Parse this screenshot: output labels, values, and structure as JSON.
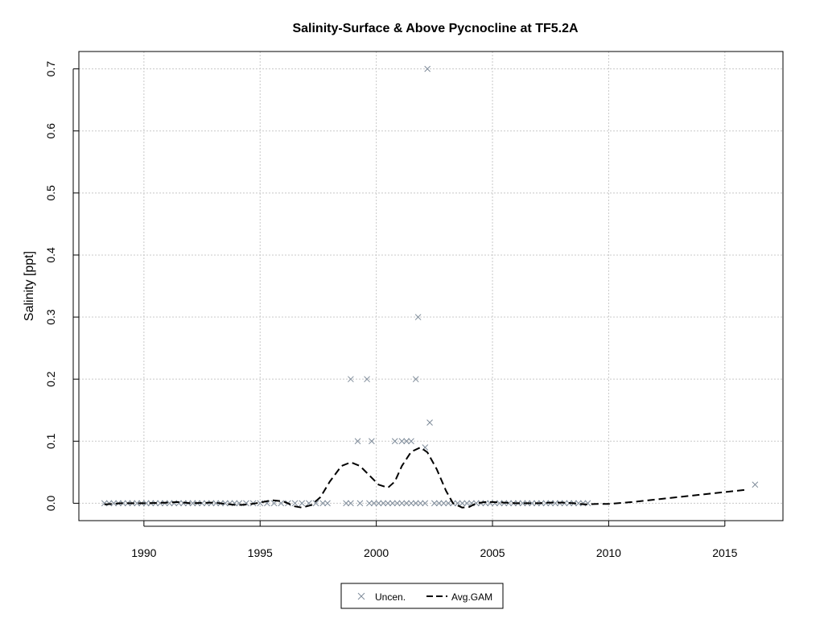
{
  "chart_data": {
    "type": "scatter",
    "title": "Salinity-Surface & Above Pycnocline at TF5.2A",
    "xlabel": "",
    "ylabel": "Salinity [ppt]",
    "xlim": [
      1987.2,
      2017.5
    ],
    "ylim": [
      -0.028,
      0.728
    ],
    "xticks": [
      "1990",
      "1995",
      "2000",
      "2005",
      "2010",
      "2015"
    ],
    "yticks": [
      "0.0",
      "0.1",
      "0.2",
      "0.3",
      "0.4",
      "0.5",
      "0.6",
      "0.7"
    ],
    "grid": true,
    "legend_position": "bottom-center",
    "series": [
      {
        "name": "Uncen.",
        "kind": "points",
        "color": "#7f8c9a",
        "x": [
          1988.3,
          1988.5,
          1988.7,
          1988.9,
          1989.1,
          1989.3,
          1989.5,
          1989.7,
          1989.9,
          1990.1,
          1990.3,
          1990.5,
          1990.7,
          1990.9,
          1991.1,
          1991.3,
          1991.5,
          1991.7,
          1991.9,
          1992.1,
          1992.3,
          1992.5,
          1992.7,
          1992.9,
          1993.1,
          1993.3,
          1993.5,
          1993.7,
          1993.9,
          1994.1,
          1994.4,
          1994.7,
          1995.0,
          1995.3,
          1995.6,
          1995.9,
          1996.2,
          1996.5,
          1996.8,
          1997.1,
          1997.4,
          1997.7,
          1997.9,
          1998.7,
          1998.9,
          1999.3,
          1999.7,
          1999.9,
          2000.1,
          2000.3,
          2000.5,
          2000.7,
          2000.9,
          2001.1,
          2001.3,
          2001.5,
          2001.7,
          2001.9,
          2002.1,
          2002.5,
          2002.7,
          2002.9,
          2003.1,
          2003.3,
          2003.5,
          2003.7,
          2003.9,
          2004.1,
          2004.3,
          2004.5,
          2004.7,
          2004.9,
          2005.1,
          2005.3,
          2005.5,
          2005.7,
          2005.9,
          2006.1,
          2006.3,
          2006.5,
          2006.7,
          2006.9,
          2007.1,
          2007.3,
          2007.5,
          2007.7,
          2007.9,
          2008.1,
          2008.3,
          2008.5,
          2008.7,
          2008.9,
          2009.1,
          1998.9,
          1999.6,
          2001.7,
          2001.8,
          2002.2,
          1999.2,
          1999.8,
          2000.8,
          2001.1,
          2001.3,
          2001.5,
          2002.1,
          2002.3,
          2016.3
        ],
        "y": [
          0,
          0,
          0,
          0,
          0,
          0,
          0,
          0,
          0,
          0,
          0,
          0,
          0,
          0,
          0,
          0,
          0,
          0,
          0,
          0,
          0,
          0,
          0,
          0,
          0,
          0,
          0,
          0,
          0,
          0,
          0,
          0,
          0,
          0,
          0,
          0,
          0,
          0,
          0,
          0,
          0,
          0,
          0,
          0,
          0,
          0,
          0,
          0,
          0,
          0,
          0,
          0,
          0,
          0,
          0,
          0,
          0,
          0,
          0,
          0,
          0,
          0,
          0,
          0,
          0,
          0,
          0,
          0,
          0,
          0,
          0,
          0,
          0,
          0,
          0,
          0,
          0,
          0,
          0,
          0,
          0,
          0,
          0,
          0,
          0,
          0,
          0,
          0,
          0,
          0,
          0,
          0,
          0,
          0.2,
          0.2,
          0.2,
          0.3,
          0.7,
          0.1,
          0.1,
          0.1,
          0.1,
          0.1,
          0.1,
          0.09,
          0.13,
          0.03
        ]
      },
      {
        "name": "Avg.GAM",
        "kind": "dashed-line",
        "color": "#000000",
        "x": [
          1988.3,
          1989.0,
          1990.0,
          1991.0,
          1991.5,
          1992.0,
          1993.0,
          1994.0,
          1994.5,
          1995.0,
          1995.5,
          1996.0,
          1996.5,
          1996.8,
          1997.2,
          1997.6,
          1998.0,
          1998.5,
          1998.9,
          1999.3,
          1999.7,
          2000.1,
          2000.5,
          2000.8,
          2001.1,
          2001.5,
          2001.9,
          2002.2,
          2002.6,
          2003.0,
          2003.3,
          2003.7,
          2004.0,
          2004.3,
          2004.7,
          2005.0,
          2005.5,
          2006.0,
          2006.5,
          2007.0,
          2007.5,
          2008.0,
          2008.5,
          2009.0,
          2009.5,
          2010.0,
          2011.0,
          2012.0,
          2013.0,
          2014.0,
          2015.0,
          2016.0
        ],
        "y": [
          -0.002,
          0.0,
          0.0,
          0.001,
          0.002,
          0.0,
          0.001,
          -0.003,
          -0.002,
          0.001,
          0.005,
          0.003,
          -0.005,
          -0.007,
          -0.003,
          0.01,
          0.035,
          0.06,
          0.066,
          0.06,
          0.045,
          0.03,
          0.025,
          0.035,
          0.06,
          0.083,
          0.09,
          0.082,
          0.055,
          0.02,
          0.0,
          -0.007,
          -0.006,
          0.0,
          0.002,
          0.002,
          0.001,
          0.0,
          0.0,
          0.0,
          0.001,
          0.001,
          0.0,
          -0.002,
          -0.001,
          -0.001,
          0.002,
          0.006,
          0.01,
          0.014,
          0.018,
          0.022
        ]
      }
    ]
  }
}
